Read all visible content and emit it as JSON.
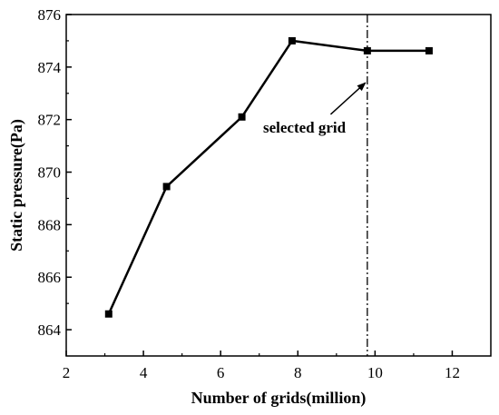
{
  "chart_data": {
    "type": "line",
    "title": "",
    "xlabel": "Number of grids(million)",
    "ylabel": "Static pressure(Pa)",
    "xlim": [
      2,
      13
    ],
    "ylim": [
      863,
      876
    ],
    "x_ticks": [
      2,
      4,
      6,
      8,
      10,
      12
    ],
    "y_ticks": [
      864,
      866,
      868,
      870,
      872,
      874,
      876
    ],
    "grid": false,
    "legend": "none",
    "series": [
      {
        "marker": "square",
        "color": "#000000",
        "x": [
          3.1,
          4.6,
          6.55,
          7.85,
          9.8,
          11.4
        ],
        "y": [
          864.6,
          869.45,
          872.1,
          875.0,
          874.62,
          874.62
        ]
      }
    ],
    "reference_line": {
      "x": 9.8,
      "style": "dash-dot",
      "color": "#000000"
    },
    "annotation": {
      "text": "selected grid",
      "text_x": 7.1,
      "text_y": 871.5,
      "arrow_from_x": 8.85,
      "arrow_from_y": 872.2,
      "arrow_to_x": 9.75,
      "arrow_to_y": 873.4
    }
  }
}
